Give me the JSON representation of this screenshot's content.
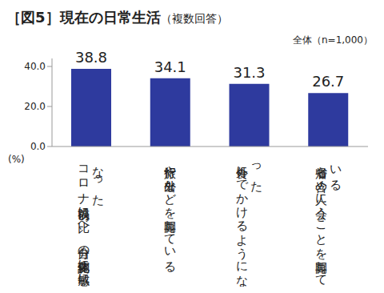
{
  "chart_data": {
    "type": "bar",
    "title": "［図5］現在の日常生活",
    "subtitle": "（複数回答）",
    "note": "全体（n=1,000）",
    "y_label": "(%)",
    "categories": [
      "コロナ禍以前に比べ、自分の体調変化に敏感になった",
      "旅行や外出などを再開している",
      "外食にでかけるようになった",
      "帰省も含め人に会うことを再開している"
    ],
    "values": [
      38.8,
      34.1,
      31.3,
      26.7
    ],
    "color": "#2E3A9E",
    "ylim": [
      0,
      44
    ],
    "yticks": [
      {
        "value": 0,
        "label": "0.0"
      },
      {
        "value": 20,
        "label": "20.0"
      },
      {
        "value": 40,
        "label": "40.0"
      }
    ],
    "grid": false,
    "data_labels": true
  }
}
